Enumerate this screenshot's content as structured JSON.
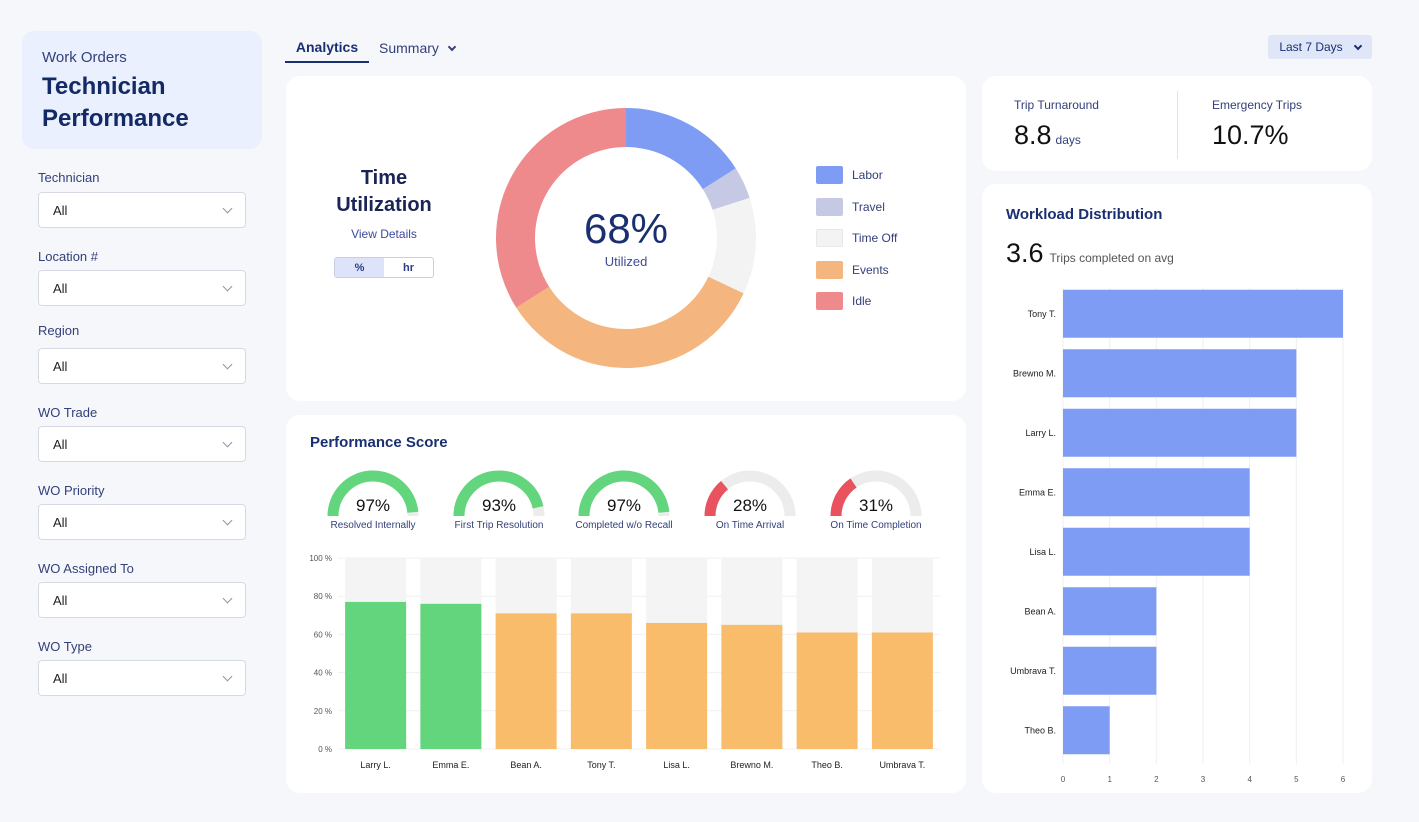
{
  "header": {
    "subtitle": "Work Orders",
    "title_line1": "Technician",
    "title_line2": "Performance"
  },
  "filters": [
    {
      "label": "Technician",
      "value": "All"
    },
    {
      "label": "Location #",
      "value": "All"
    },
    {
      "label": "Region",
      "value": "All"
    },
    {
      "label": "WO Trade",
      "value": "All"
    },
    {
      "label": "WO Priority",
      "value": "All"
    },
    {
      "label": "WO Assigned To",
      "value": "All"
    },
    {
      "label": "WO Type",
      "value": "All"
    }
  ],
  "tabs": {
    "analytics": "Analytics",
    "summary": "Summary"
  },
  "date_range": "Last 7 Days",
  "time_utilization": {
    "title_line1": "Time",
    "title_line2": "Utilization",
    "link": "View Details",
    "toggle": {
      "percent": "%",
      "hours": "hr"
    },
    "center_value": "68%",
    "center_label": "Utilized",
    "legend": [
      {
        "name": "Labor",
        "color": "#7f9cf5"
      },
      {
        "name": "Travel",
        "color": "#c5c9e3"
      },
      {
        "name": "Time Off",
        "color": "#f3f3f3"
      },
      {
        "name": "Events",
        "color": "#f4b67e"
      },
      {
        "name": "Idle",
        "color": "#ef8a8c"
      }
    ]
  },
  "kpis": {
    "trip_turnaround": {
      "label": "Trip Turnaround",
      "value": "8.8",
      "unit": "days"
    },
    "emergency_trips": {
      "label": "Emergency Trips",
      "value": "10.7%"
    }
  },
  "performance": {
    "title": "Performance Score",
    "gauges": [
      {
        "label": "Resolved Internally",
        "value": "97%",
        "pct": 97,
        "color": "#62d57d"
      },
      {
        "label": "First Trip Resolution",
        "value": "93%",
        "pct": 93,
        "color": "#62d57d"
      },
      {
        "label": "Completed w/o Recall",
        "value": "97%",
        "pct": 97,
        "color": "#62d57d"
      },
      {
        "label": "On Time Arrival",
        "value": "28%",
        "pct": 28,
        "color": "#e8535f"
      },
      {
        "label": "On Time Completion",
        "value": "31%",
        "pct": 31,
        "color": "#e8535f"
      }
    ]
  },
  "workload": {
    "title": "Workload Distribution",
    "avg_value": "3.6",
    "avg_label": "Trips completed on avg"
  },
  "chart_data": [
    {
      "type": "pie",
      "title": "Time Utilization",
      "categories": [
        "Labor",
        "Travel",
        "Time Off",
        "Events",
        "Idle"
      ],
      "values": [
        16,
        4,
        12,
        34,
        34
      ],
      "colors": [
        "#7f9cf5",
        "#c5c9e3",
        "#f3f3f3",
        "#f4b67e",
        "#ef8a8c"
      ],
      "center": "68%"
    },
    {
      "type": "bar",
      "title": "Performance Score by Technician",
      "categories": [
        "Larry L.",
        "Emma E.",
        "Bean A.",
        "Tony T.",
        "Lisa L.",
        "Brewno M.",
        "Theo B.",
        "Umbrava T."
      ],
      "values": [
        77,
        76,
        71,
        71,
        66,
        65,
        61,
        61
      ],
      "colors": [
        "#62d57d",
        "#62d57d",
        "#f9bc6b",
        "#f9bc6b",
        "#f9bc6b",
        "#f9bc6b",
        "#f9bc6b",
        "#f9bc6b"
      ],
      "ylim": [
        0,
        100
      ],
      "yticks": [
        "0 %",
        "20 %",
        "40 %",
        "60 %",
        "80 %",
        "100 %"
      ]
    },
    {
      "type": "bar",
      "orientation": "horizontal",
      "title": "Workload Distribution",
      "categories": [
        "Tony T.",
        "Brewno M.",
        "Larry L.",
        "Emma E.",
        "Lisa L.",
        "Bean A.",
        "Umbrava T.",
        "Theo B."
      ],
      "values": [
        6,
        5,
        5,
        4,
        4,
        2,
        2,
        1
      ],
      "color": "#7f9cf5",
      "xlim": [
        0,
        6
      ],
      "xticks": [
        "0",
        "1",
        "2",
        "3",
        "4",
        "5",
        "6"
      ]
    }
  ]
}
